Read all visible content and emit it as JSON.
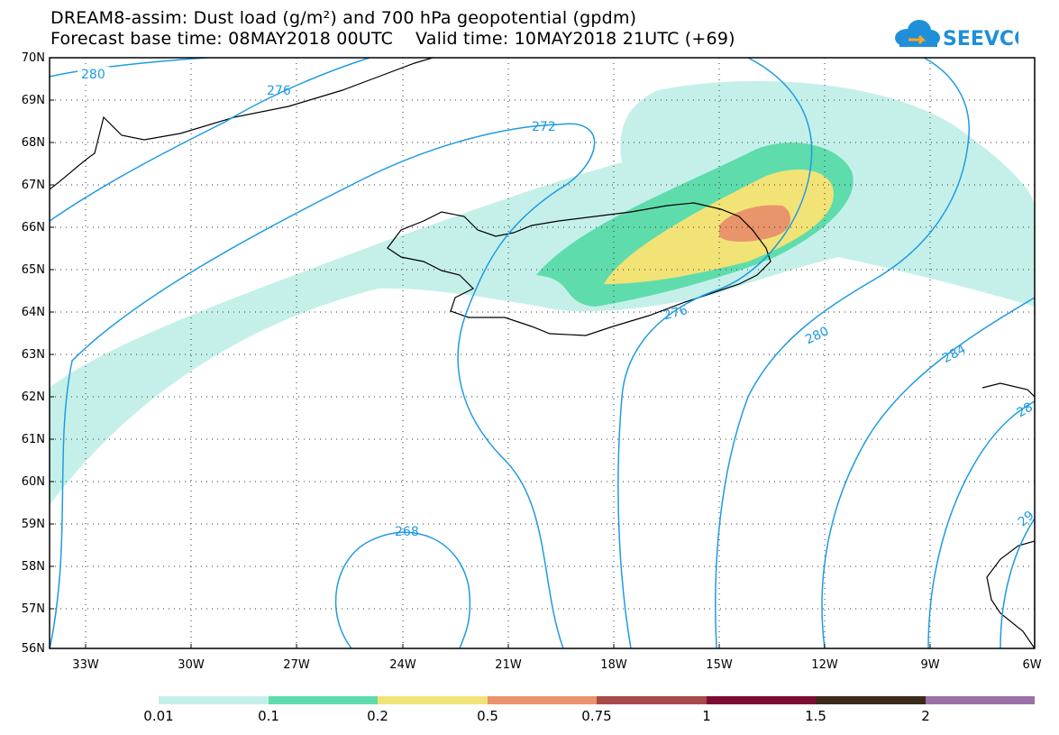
{
  "header": {
    "title_line1": "DREAM8-assim: Dust load (g/m²) and 700 hPa geopotential (gpdm)",
    "title_line2": "Forecast base time: 08MAY2018 00UTC    Valid time: 10MAY2018 21UTC (+69)",
    "logo_text": "SEEVCCC"
  },
  "map": {
    "latitude_labels": [
      "70N",
      "69N",
      "68N",
      "67N",
      "66N",
      "65N",
      "64N",
      "63N",
      "62N",
      "61N",
      "60N",
      "59N",
      "58N",
      "57N",
      "56N"
    ],
    "longitude_labels": [
      "33W",
      "30W",
      "27W",
      "24W",
      "21W",
      "18W",
      "15W",
      "12W",
      "9W",
      "6W"
    ],
    "contour_labels": [
      "280",
      "276",
      "272",
      "276",
      "280",
      "284",
      "28",
      "268",
      "29"
    ],
    "contour_color": "#1e9be0"
  },
  "colorbar": {
    "labels": [
      "0.01",
      "0.1",
      "0.2",
      "0.5",
      "0.75",
      "1",
      "1.5",
      "2"
    ],
    "colors": [
      "#c5f0ea",
      "#5fdcac",
      "#f2e376",
      "#e9946a",
      "#a8494a",
      "#7d0c33",
      "#3b2a1a",
      "#9b6fa8"
    ]
  }
}
